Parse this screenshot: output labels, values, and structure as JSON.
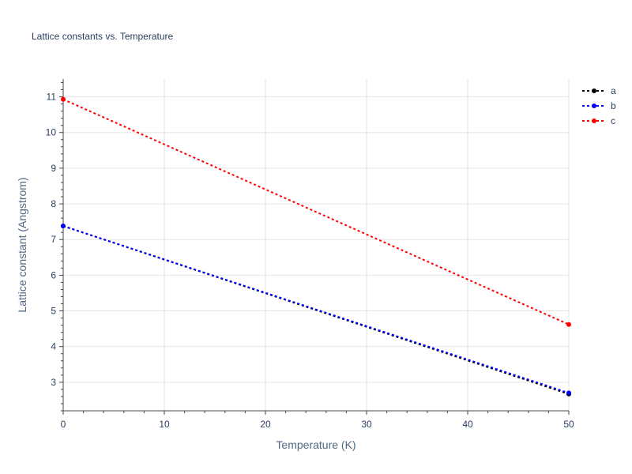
{
  "chart_data": {
    "type": "line",
    "title": "Lattice constants vs. Temperature",
    "xlabel": "Temperature (K)",
    "ylabel": "Lattice constant (Angstrom)",
    "xlim": [
      0,
      50
    ],
    "ylim": [
      2.2,
      11.5
    ],
    "xticks": [
      0,
      10,
      20,
      30,
      40,
      50
    ],
    "yticks": [
      3,
      4,
      5,
      6,
      7,
      8,
      9,
      10,
      11
    ],
    "grid": true,
    "legend_position": "top-right",
    "series": [
      {
        "name": "a",
        "color": "#000000",
        "x": [
          0,
          50
        ],
        "y": [
          7.38,
          2.67
        ]
      },
      {
        "name": "b",
        "color": "#0000ff",
        "x": [
          0,
          50
        ],
        "y": [
          7.38,
          2.7
        ]
      },
      {
        "name": "c",
        "color": "#ff0000",
        "x": [
          0,
          50
        ],
        "y": [
          10.93,
          4.62
        ]
      }
    ]
  }
}
